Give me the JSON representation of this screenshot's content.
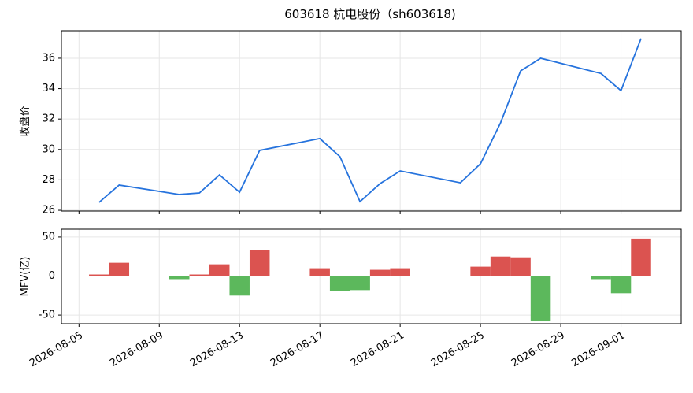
{
  "chart_data": [
    {
      "type": "line",
      "title": "603618 杭电股份（sh603618)",
      "ylabel": "收盘价",
      "color": "#2673dd",
      "grid": true,
      "x": [
        "2026-08-06",
        "2026-08-07",
        "2026-08-10",
        "2026-08-11",
        "2026-08-12",
        "2026-08-13",
        "2026-08-14",
        "2026-08-17",
        "2026-08-18",
        "2026-08-19",
        "2026-08-20",
        "2026-08-21",
        "2026-08-24",
        "2026-08-25",
        "2026-08-26",
        "2026-08-27",
        "2026-08-28",
        "2026-08-31",
        "2026-09-01",
        "2026-09-02"
      ],
      "values": [
        26.52,
        27.66,
        27.04,
        27.14,
        28.33,
        27.19,
        29.94,
        30.72,
        29.53,
        26.57,
        27.76,
        28.59,
        27.81,
        29.06,
        31.75,
        35.17,
        36.0,
        35.0,
        33.87,
        37.3
      ],
      "xlim": [
        "2026-08-04T03:00",
        "2026-09-04T00:00"
      ],
      "ylim": [
        25.95,
        37.81
      ],
      "yticks": [
        26,
        28,
        30,
        32,
        34,
        36
      ]
    },
    {
      "type": "bar",
      "ylabel": "MFV(亿)",
      "positive_color": "#db5350",
      "negative_color": "#5cb85c",
      "grid": true,
      "x": [
        "2026-08-06",
        "2026-08-07",
        "2026-08-10",
        "2026-08-11",
        "2026-08-12",
        "2026-08-13",
        "2026-08-14",
        "2026-08-17",
        "2026-08-18",
        "2026-08-19",
        "2026-08-20",
        "2026-08-21",
        "2026-08-24",
        "2026-08-25",
        "2026-08-26",
        "2026-08-27",
        "2026-08-28",
        "2026-08-31",
        "2026-09-01",
        "2026-09-02"
      ],
      "values": [
        2,
        17,
        -4,
        2,
        15,
        -25,
        33,
        10,
        -19,
        -18,
        8,
        10,
        0,
        12,
        25,
        24,
        -58,
        -4,
        -22,
        48
      ],
      "xlim": [
        "2026-08-04T03:00",
        "2026-09-04T00:00"
      ],
      "ylim": [
        -61,
        60
      ],
      "yticks": [
        -50,
        0,
        50
      ],
      "xticks": [
        "2026-08-05",
        "2026-08-09",
        "2026-08-13",
        "2026-08-17",
        "2026-08-21",
        "2026-08-25",
        "2026-08-29",
        "2026-09-01"
      ]
    }
  ]
}
